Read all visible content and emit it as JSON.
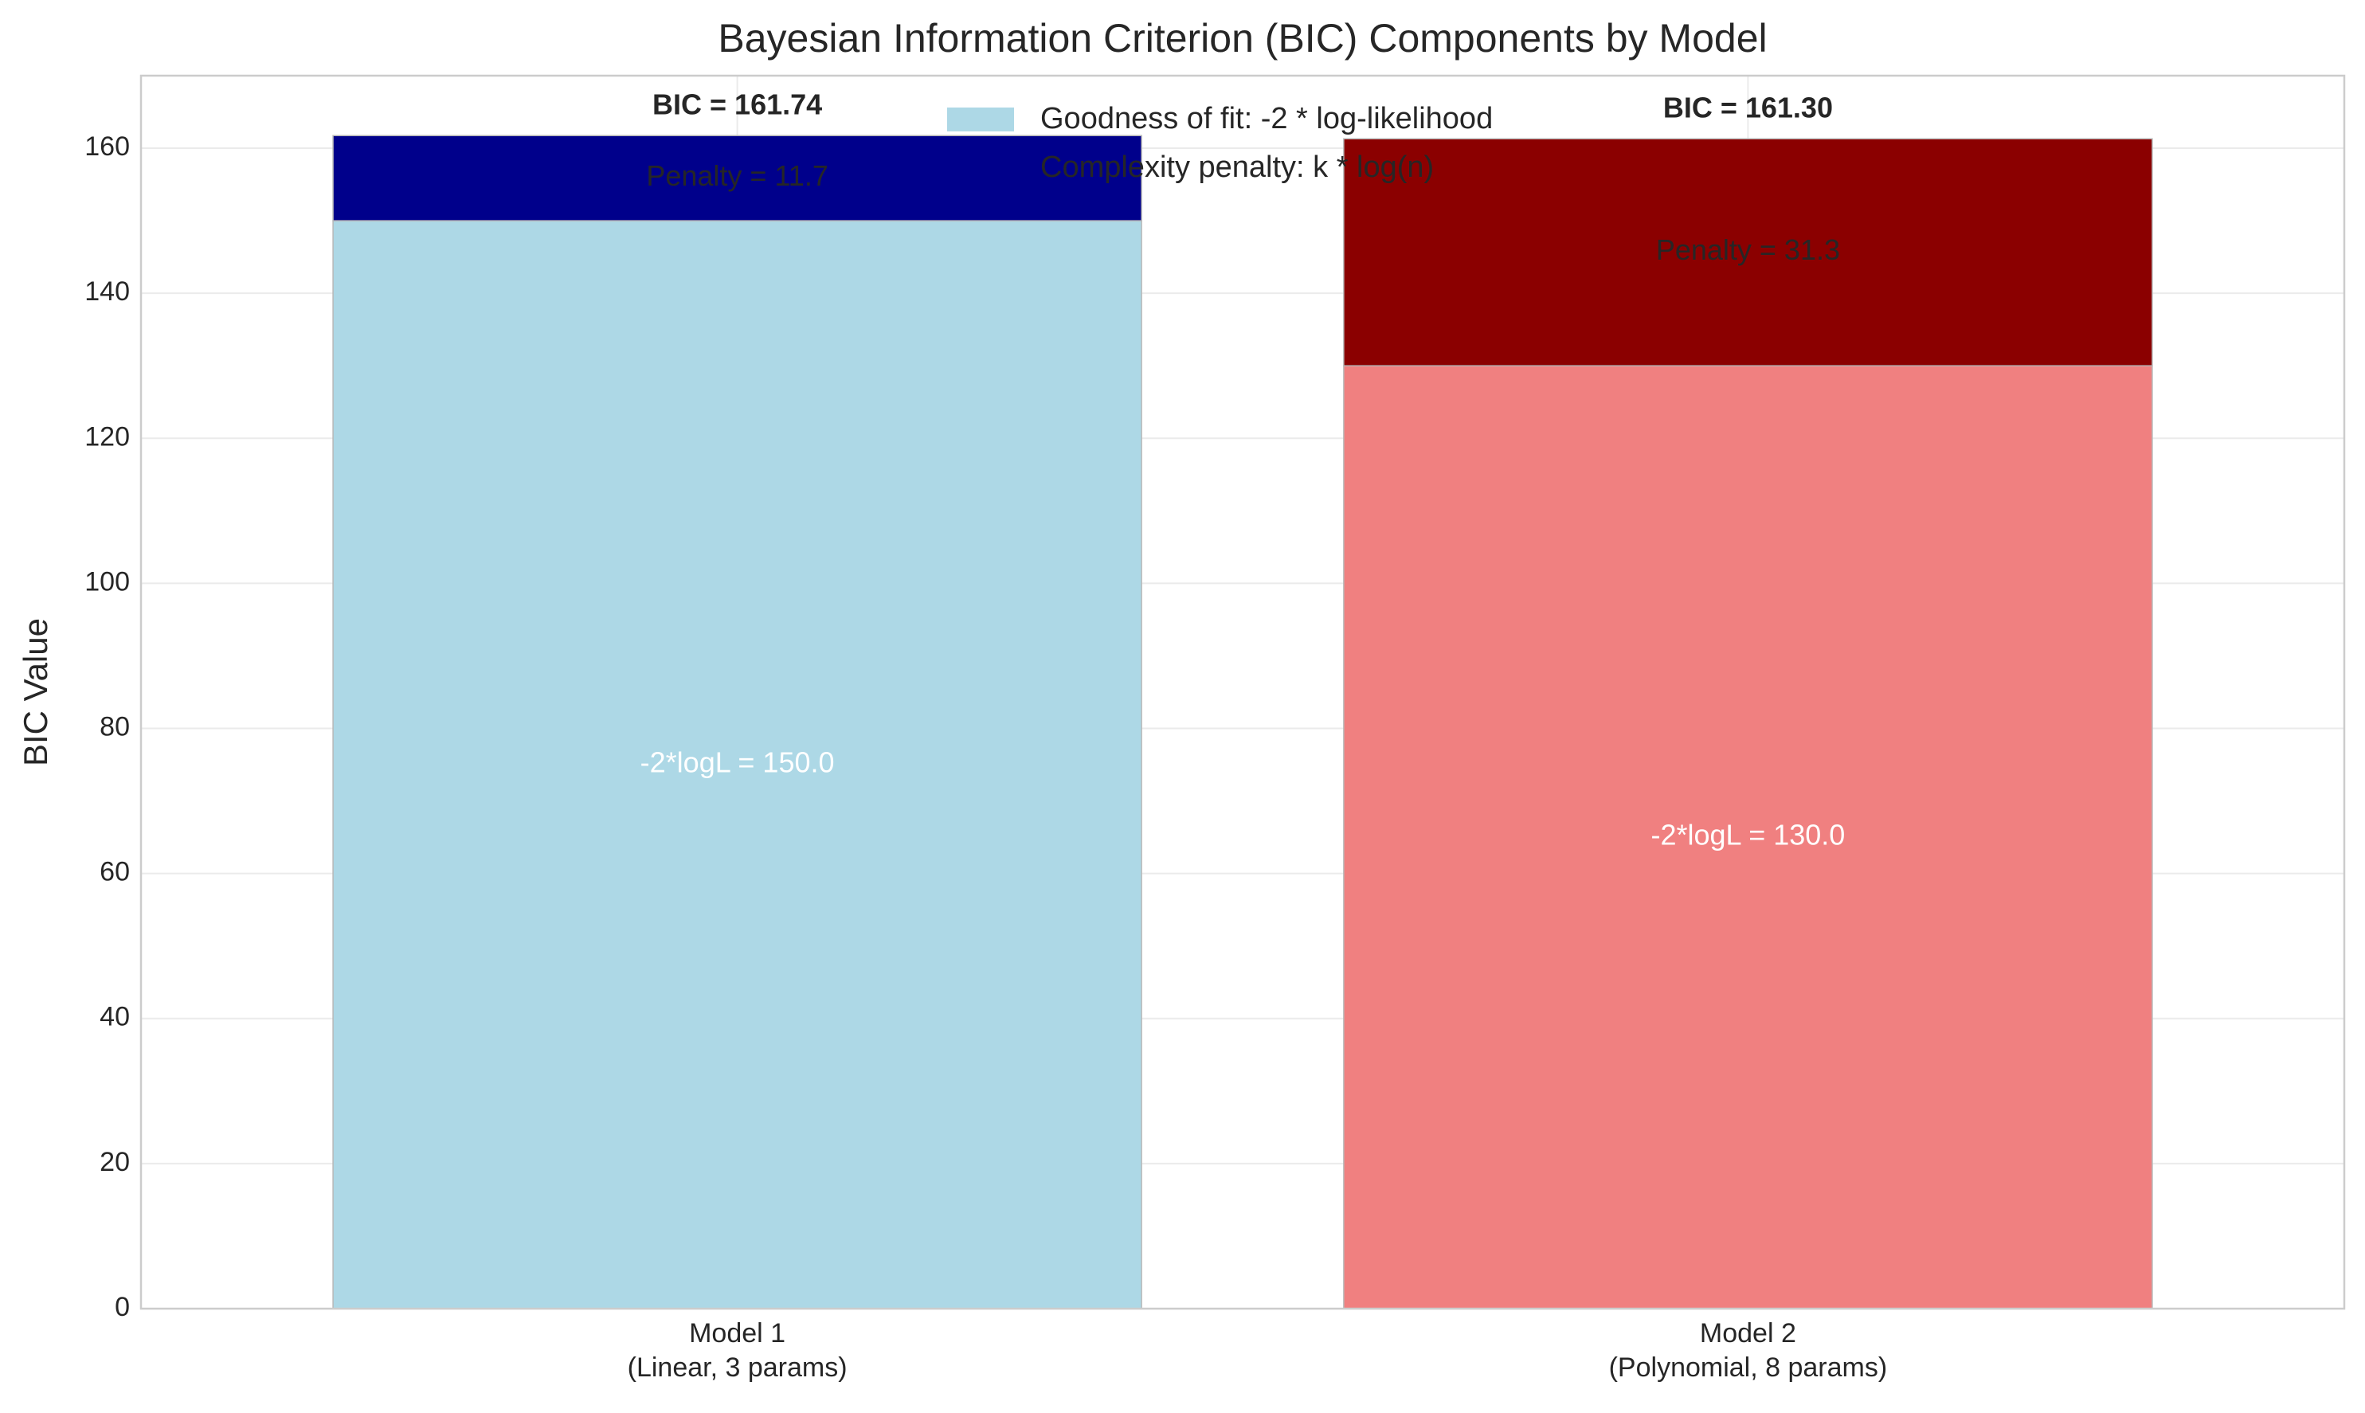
{
  "chart_data": {
    "type": "bar",
    "stacked": true,
    "title": "Bayesian Information Criterion (BIC) Components by Model",
    "xlabel": "",
    "ylabel": "BIC Value",
    "ylim": [
      0,
      170
    ],
    "yticks": [
      0,
      20,
      40,
      60,
      80,
      100,
      120,
      140,
      160
    ],
    "grid": true,
    "legend_position": "top-center",
    "categories": [
      {
        "line1": "Model 1",
        "line2": "(Linear, 3 params)"
      },
      {
        "line1": "Model 2",
        "line2": "(Polynomial, 8 params)"
      }
    ],
    "series": [
      {
        "name": "Goodness of fit: -2 * log-likelihood",
        "values": [
          150.0,
          130.0
        ],
        "colors": [
          "#add8e6",
          "#f08080"
        ],
        "labels": [
          "-2*logL = 150.0",
          "-2*logL = 130.0"
        ]
      },
      {
        "name": "Complexity penalty: k * log(n)",
        "values": [
          11.74,
          31.3
        ],
        "colors": [
          "#00008b",
          "#8b0000"
        ],
        "labels": [
          "Penalty = 11.7",
          "Penalty = 31.3"
        ]
      }
    ],
    "totals": [
      161.74,
      161.3
    ],
    "total_labels": [
      "BIC = 161.74",
      "BIC = 161.30"
    ]
  }
}
